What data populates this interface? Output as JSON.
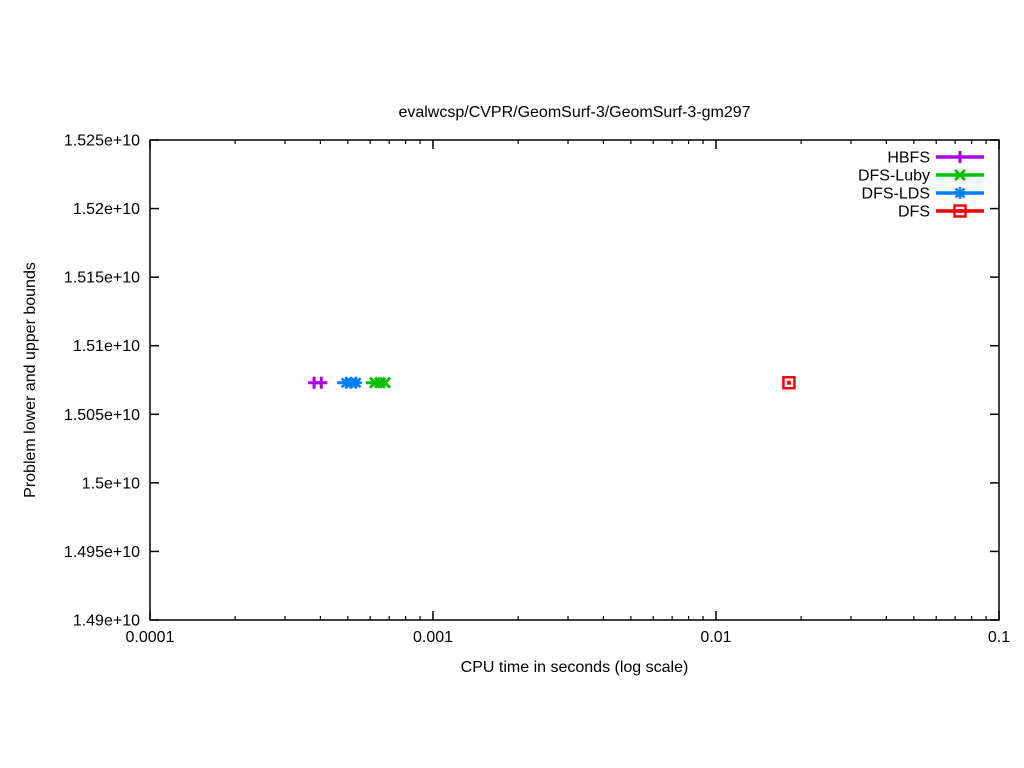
{
  "chart_data": {
    "type": "scatter",
    "title": "evalwcsp/CVPR/GeomSurf-3/GeomSurf-3-gm297",
    "xlabel": "CPU time in seconds (log scale)",
    "ylabel": "Problem lower and upper bounds",
    "x_scale": "log",
    "xlim": [
      0.0001,
      0.1
    ],
    "ylim": [
      14900000000,
      15250000000
    ],
    "x_tick_values": [
      0.0001,
      0.001,
      0.01,
      0.1
    ],
    "x_tick_labels": [
      "0.0001",
      "0.001",
      "0.01",
      "0.1"
    ],
    "y_tick_values": [
      14900000000,
      14950000000,
      15000000000,
      15050000000,
      15100000000,
      15150000000,
      15200000000,
      15250000000
    ],
    "y_tick_labels": [
      "1.49e+10",
      "1.495e+10",
      "1.5e+10",
      "1.505e+10",
      "1.51e+10",
      "1.515e+10",
      "1.52e+10",
      "1.525e+10"
    ],
    "grid": "off",
    "legend_position": "top-right",
    "axis_color": "#000000",
    "background_color": "#ffffff",
    "series": [
      {
        "name": "HBFS",
        "color": "#aa00e6",
        "marker": "plus",
        "line": [
          [
            0.00038,
            15073000000
          ],
          [
            0.000403,
            15073000000
          ]
        ],
        "points": [
          [
            0.00038,
            15073000000
          ],
          [
            0.000403,
            15073000000
          ]
        ]
      },
      {
        "name": "DFS-Luby",
        "color": "#00c000",
        "marker": "x",
        "line": [
          [
            0.000579,
            15073000000
          ],
          [
            0.000677,
            15073000000
          ]
        ],
        "points": [
          [
            0.000624,
            15073000000
          ],
          [
            0.00065,
            15073000000
          ],
          [
            0.000677,
            15073000000
          ]
        ]
      },
      {
        "name": "DFS-LDS",
        "color": "#0080ff",
        "marker": "asterisk",
        "line": [
          [
            0.000458,
            15073000000
          ],
          [
            0.000535,
            15073000000
          ]
        ],
        "points": [
          [
            0.000493,
            15073000000
          ],
          [
            0.000513,
            15073000000
          ],
          [
            0.000535,
            15073000000
          ]
        ]
      },
      {
        "name": "DFS",
        "color": "#ff0000",
        "marker": "square-dot",
        "line": [],
        "points": [
          [
            0.0181,
            15073000000
          ]
        ]
      }
    ]
  }
}
